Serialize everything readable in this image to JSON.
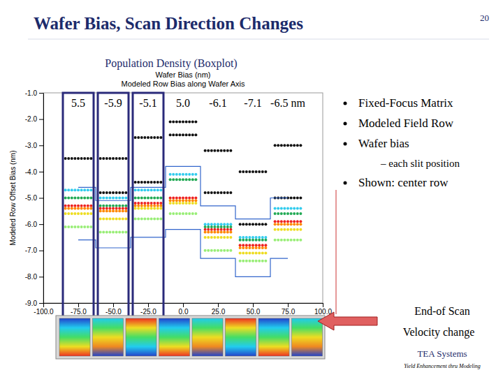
{
  "title": "Wafer Bias, Scan Direction Changes",
  "page_number": "20",
  "subtitle": "Population Density (Boxplot)",
  "bullets": [
    "Fixed-Focus Matrix",
    "Modeled Field Row",
    "Wafer bias",
    "– each slit position",
    "Shown: center row"
  ],
  "arrow_text": [
    "End-of Scan",
    "Velocity change"
  ],
  "footer": {
    "brand": "TEA Systems",
    "tagline": "Yield Enhancement thru Modeling"
  },
  "chart_data": {
    "type": "scatter",
    "title": "Wafer Bias (nm)",
    "subtitle": "Modeled Row Bias along Wafer Axis",
    "y_label": "Modeled Row Offset Bias (nm)",
    "zone_labels": [
      "5.5",
      "-5.9",
      "-5.1",
      "5.0",
      "-6.1",
      "-7.1",
      "-6.5  nm"
    ],
    "x": [
      -75,
      -50,
      -25,
      0,
      25,
      50,
      75
    ],
    "series": [
      {
        "type": "scatter",
        "color": "#111111",
        "values": [
          -3.5,
          -3.5,
          -2.7,
          -2.1,
          -3.2,
          -4.0,
          -3.0
        ]
      },
      {
        "type": "scatter",
        "color": "#111111",
        "values": [
          null,
          -4.8,
          -4.4,
          -2.6,
          -4.8,
          -6.0,
          -5.0
        ]
      },
      {
        "type": "scatter",
        "color": "#33ccee",
        "values": [
          -4.7,
          -5.0,
          -4.7,
          -4.1,
          -6.0,
          -6.5,
          -5.4
        ]
      },
      {
        "type": "scatter",
        "color": "#22aa55",
        "values": [
          -5.0,
          -5.3,
          -5.0,
          -4.3,
          -6.1,
          -6.6,
          -5.6
        ]
      },
      {
        "type": "scatter",
        "color": "#ee2222",
        "values": [
          -5.3,
          -5.4,
          -5.2,
          -5.0,
          -6.2,
          -6.8,
          -5.9
        ]
      },
      {
        "type": "scatter",
        "color": "#ff8800",
        "values": [
          -5.4,
          -5.5,
          -5.3,
          -5.1,
          -6.3,
          -6.9,
          -6.0
        ]
      },
      {
        "type": "scatter",
        "color": "#eedd22",
        "values": [
          -5.6,
          -5.8,
          -5.4,
          -5.2,
          -6.5,
          -7.1,
          -6.2
        ]
      },
      {
        "type": "scatter",
        "color": "#99ee77",
        "values": [
          -6.1,
          -6.3,
          -5.8,
          -5.6,
          -7.0,
          -7.4,
          -6.6
        ]
      },
      {
        "type": "line",
        "line_style": "step",
        "color": "#3366cc",
        "values": [
          -4.6,
          -5.1,
          -4.6,
          -3.8,
          -5.3,
          -5.8,
          -5.0
        ]
      },
      {
        "type": "line",
        "line_style": "step",
        "color": "#3366cc",
        "values": [
          -6.6,
          -6.9,
          -6.5,
          -6.2,
          -7.3,
          -8.0,
          -7.3
        ]
      }
    ],
    "xlim": [
      -100,
      100
    ],
    "xticks": [
      {
        "value": -100,
        "label": "-100.0"
      },
      {
        "value": -75,
        "label": "-75.0"
      },
      {
        "value": -50,
        "label": "-50.0"
      },
      {
        "value": -25,
        "label": "-25.0"
      },
      {
        "value": 0,
        "label": "0.0"
      },
      {
        "value": 25,
        "label": "25.0"
      },
      {
        "value": 50,
        "label": "50.0"
      },
      {
        "value": 75,
        "label": "75.0"
      },
      {
        "value": 100,
        "label": "100.0"
      }
    ],
    "ylim": [
      -9,
      -1
    ],
    "yticks": [
      {
        "value": -1,
        "label": "-1.0"
      },
      {
        "value": -2,
        "label": "-2.0"
      },
      {
        "value": -3,
        "label": "-3.0"
      },
      {
        "value": -4,
        "label": "-4.0"
      },
      {
        "value": -5,
        "label": "-5.0"
      },
      {
        "value": -6,
        "label": "-6.0"
      },
      {
        "value": -7,
        "label": "-7.0"
      },
      {
        "value": -8,
        "label": "-8.0"
      },
      {
        "value": -9,
        "label": "-9.0"
      }
    ],
    "grid": false
  }
}
